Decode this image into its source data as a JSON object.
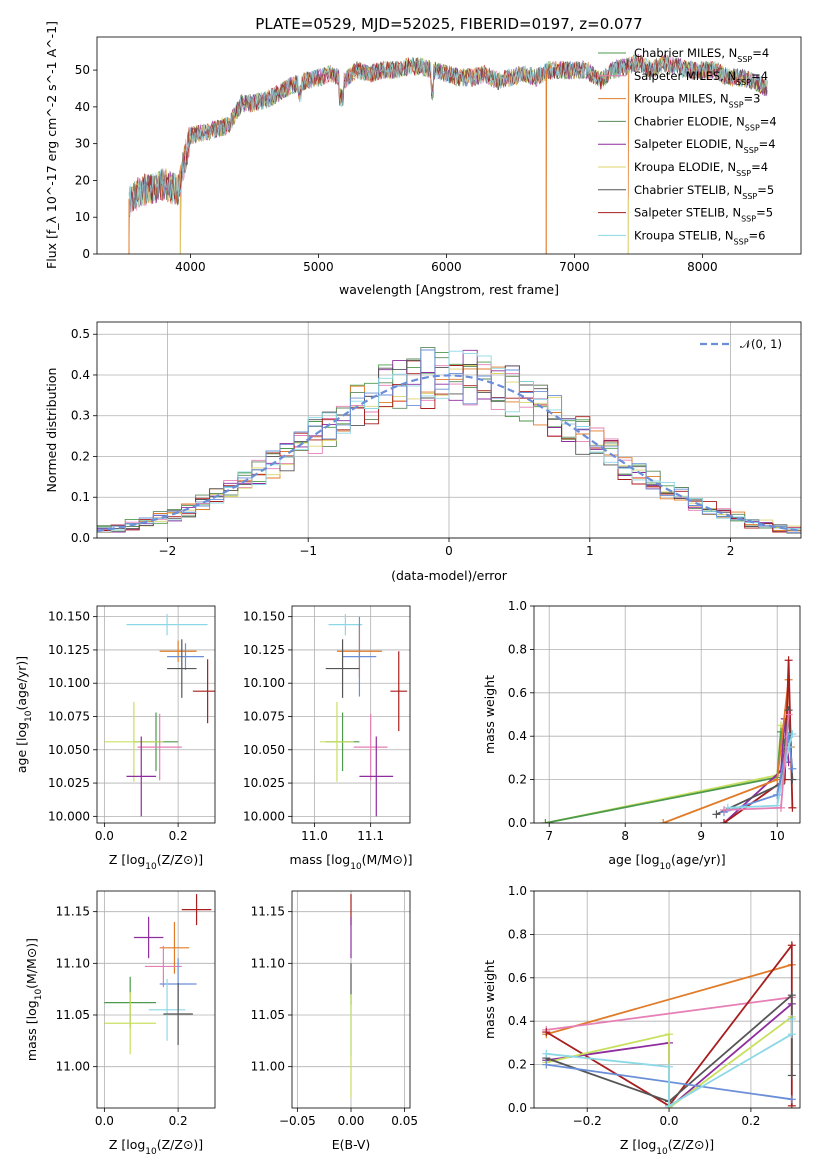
{
  "title": "PLATE=0529, MJD=52025, FIBERID=0197, z=0.077",
  "colors": [
    "#4d9a4d",
    "#e67fb5",
    "#e07b28",
    "#5d8a5d",
    "#8e2d9e",
    "#dcd36b",
    "#555555",
    "#a81e1e",
    "#8dd8e6"
  ],
  "extra_colors": {
    "blue": "#6a8fd8",
    "lime": "#c8e060"
  },
  "chart_data": [
    {
      "id": "spectrum",
      "type": "line",
      "title": "PLATE=0529, MJD=52025, FIBERID=0197, z=0.077",
      "xlabel": "wavelength [Angstrom, rest frame]",
      "ylabel": "Flux [f_λ 10^-17 erg cm^-2 s^-1 A^-1]",
      "xlim": [
        3270,
        8770
      ],
      "ylim": [
        0,
        59
      ],
      "xticks": [
        4000,
        5000,
        6000,
        7000,
        8000
      ],
      "yticks": [
        0,
        10,
        20,
        30,
        40,
        50
      ],
      "grid": false,
      "legend_position": "top-right",
      "series": [
        {
          "name": "Chabrier MILES, N_SSP=4",
          "label_main": "Chabrier MILES, N",
          "label_sub": "SSP",
          "label_tail": "=4"
        },
        {
          "name": "Salpeter MILES, N_SSP=4",
          "label_main": "Salpeter MILES, N",
          "label_sub": "SSP",
          "label_tail": "=4"
        },
        {
          "name": "Kroupa MILES, N_SSP=3",
          "label_main": "Kroupa MILES, N",
          "label_sub": "SSP",
          "label_tail": "=3"
        },
        {
          "name": "Chabrier ELODIE, N_SSP=4",
          "label_main": "Chabrier ELODIE, N",
          "label_sub": "SSP",
          "label_tail": "=4"
        },
        {
          "name": "Salpeter ELODIE, N_SSP=4",
          "label_main": "Salpeter ELODIE, N",
          "label_sub": "SSP",
          "label_tail": "=4"
        },
        {
          "name": "Kroupa ELODIE, N_SSP=4",
          "label_main": "Kroupa ELODIE, N",
          "label_sub": "SSP",
          "label_tail": "=4"
        },
        {
          "name": "Chabrier STELIB, N_SSP=5",
          "label_main": "Chabrier STELIB, N",
          "label_sub": "SSP",
          "label_tail": "=5"
        },
        {
          "name": "Salpeter STELIB, N_SSP=5",
          "label_main": "Salpeter STELIB, N",
          "label_sub": "SSP",
          "label_tail": "=5"
        },
        {
          "name": "Kroupa STELIB, N_SSP=6",
          "label_main": "Kroupa STELIB, N",
          "label_sub": "SSP",
          "label_tail": "=6"
        }
      ],
      "approx_continuum": [
        [
          3520,
          14
        ],
        [
          3600,
          17
        ],
        [
          3700,
          18
        ],
        [
          3800,
          19
        ],
        [
          3900,
          17
        ],
        [
          3950,
          25
        ],
        [
          4000,
          32
        ],
        [
          4100,
          33
        ],
        [
          4200,
          34
        ],
        [
          4300,
          35
        ],
        [
          4400,
          41
        ],
        [
          4500,
          41
        ],
        [
          4600,
          42
        ],
        [
          4700,
          44
        ],
        [
          4800,
          46
        ],
        [
          4900,
          47
        ],
        [
          5000,
          48
        ],
        [
          5100,
          49
        ],
        [
          5200,
          47
        ],
        [
          5300,
          50
        ],
        [
          5400,
          49
        ],
        [
          5500,
          50
        ],
        [
          5600,
          50
        ],
        [
          5700,
          51
        ],
        [
          5800,
          51
        ],
        [
          5900,
          50
        ],
        [
          6000,
          49
        ],
        [
          6100,
          48
        ],
        [
          6200,
          48
        ],
        [
          6300,
          49
        ],
        [
          6400,
          47
        ],
        [
          6500,
          48
        ],
        [
          6600,
          49
        ],
        [
          6700,
          48
        ],
        [
          6800,
          50
        ],
        [
          6900,
          50
        ],
        [
          7000,
          50
        ],
        [
          7100,
          50
        ],
        [
          7200,
          47
        ],
        [
          7300,
          50
        ],
        [
          7400,
          51
        ],
        [
          7500,
          52
        ],
        [
          7600,
          50
        ],
        [
          7700,
          52
        ],
        [
          7800,
          51
        ],
        [
          7900,
          50
        ],
        [
          8000,
          50
        ],
        [
          8100,
          50
        ],
        [
          8200,
          48
        ],
        [
          8300,
          48
        ],
        [
          8400,
          47
        ],
        [
          8510,
          45
        ]
      ],
      "dropouts": [
        [
          3520,
          0
        ],
        [
          3920,
          0
        ],
        [
          6780,
          0
        ],
        [
          7420,
          0
        ]
      ]
    },
    {
      "id": "residuals",
      "type": "line",
      "xlabel": "(data-model)/error",
      "ylabel": "Normed distribution",
      "xlim": [
        -2.5,
        2.5
      ],
      "ylim": [
        0,
        0.53
      ],
      "xticks": [
        -2,
        -1,
        0,
        1,
        2
      ],
      "yticks": [
        0.0,
        0.1,
        0.2,
        0.3,
        0.4,
        0.5
      ],
      "grid": true,
      "legend_position": "top-right",
      "reference_curve": {
        "name": "N(0,1)",
        "label_text": "𝒩(0, 1)",
        "mean": 0,
        "sigma": 1
      }
    },
    {
      "id": "age-vs-Z",
      "type": "scatter",
      "xlabel": "Z [log10(Z/Z⊙)]",
      "xlabel_main": "Z [log",
      "xlabel_sub": "10",
      "xlabel_tail": "(Z/Z⊙)]",
      "ylabel": "age [log10(age/yr)]",
      "ylabel_main": "age  [log",
      "ylabel_sub": "10",
      "ylabel_tail": "(age/yr)]",
      "xlim": [
        -0.02,
        0.3
      ],
      "ylim": [
        9.995,
        10.158
      ],
      "xticks": [
        0.0,
        0.2
      ],
      "yticks": [
        10.0,
        10.025,
        10.05,
        10.075,
        10.1,
        10.125,
        10.15
      ],
      "grid": true,
      "points": [
        {
          "c": "#8dd8e6",
          "x": 0.17,
          "y": 10.144,
          "xe": 0.11,
          "ye": 0.008
        },
        {
          "c": "#e07b28",
          "x": 0.2,
          "y": 10.124,
          "xe": 0.05,
          "ye": 0.008
        },
        {
          "c": "#6a8fd8",
          "x": 0.22,
          "y": 10.12,
          "xe": 0.05,
          "ye": 0.01
        },
        {
          "c": "#555555",
          "x": 0.21,
          "y": 10.111,
          "xe": 0.04,
          "ye": 0.022
        },
        {
          "c": "#a81e1e",
          "x": 0.28,
          "y": 10.094,
          "xe": 0.04,
          "ye": 0.024
        },
        {
          "c": "#4d9a4d",
          "x": 0.14,
          "y": 10.056,
          "xe": 0.06,
          "ye": 0.022
        },
        {
          "c": "#c8e060",
          "x": 0.08,
          "y": 10.056,
          "xe": 0.08,
          "ye": 0.03
        },
        {
          "c": "#e67fb5",
          "x": 0.15,
          "y": 10.052,
          "xe": 0.06,
          "ye": 0.025
        },
        {
          "c": "#8e2d9e",
          "x": 0.1,
          "y": 10.03,
          "xe": 0.04,
          "ye": 0.03
        }
      ]
    },
    {
      "id": "age-vs-mass",
      "type": "scatter",
      "xlabel": "mass [log10(M/M⊙)]",
      "xlabel_main": "mass [log",
      "xlabel_sub": "10",
      "xlabel_tail": "(M/M⊙)]",
      "xlim": [
        10.96,
        11.17
      ],
      "ylim": [
        9.995,
        10.158
      ],
      "xticks": [
        11.0,
        11.1
      ],
      "yticks": [
        10.0,
        10.025,
        10.05,
        10.075,
        10.1,
        10.125,
        10.15
      ],
      "grid": true,
      "points": [
        {
          "c": "#8dd8e6",
          "x": 11.055,
          "y": 10.144,
          "xe": 0.03,
          "ye": 0.008
        },
        {
          "c": "#e07b28",
          "x": 11.08,
          "y": 10.124,
          "xe": 0.04,
          "ye": 0.02
        },
        {
          "c": "#6a8fd8",
          "x": 11.08,
          "y": 10.12,
          "xe": 0.03,
          "ye": 0.03
        },
        {
          "c": "#555555",
          "x": 11.05,
          "y": 10.111,
          "xe": 0.03,
          "ye": 0.022
        },
        {
          "c": "#a81e1e",
          "x": 11.15,
          "y": 10.094,
          "xe": 0.015,
          "ye": 0.03
        },
        {
          "c": "#4d9a4d",
          "x": 11.05,
          "y": 10.056,
          "xe": 0.03,
          "ye": 0.022
        },
        {
          "c": "#c8e060",
          "x": 11.04,
          "y": 10.056,
          "xe": 0.03,
          "ye": 0.03
        },
        {
          "c": "#e67fb5",
          "x": 11.1,
          "y": 10.052,
          "xe": 0.03,
          "ye": 0.025
        },
        {
          "c": "#8e2d9e",
          "x": 11.11,
          "y": 10.03,
          "xe": 0.03,
          "ye": 0.03
        }
      ]
    },
    {
      "id": "mass-weight-vs-age",
      "type": "line",
      "xlabel": "age  [log10(age/yr)]",
      "xlabel_main": "age  [log",
      "xlabel_sub": "10",
      "xlabel_tail": "(age/yr)]",
      "ylabel": "mass weight",
      "xlim": [
        6.8,
        10.3
      ],
      "ylim": [
        0,
        1
      ],
      "xticks": [
        7,
        8,
        9,
        10
      ],
      "yticks": [
        0.0,
        0.2,
        0.4,
        0.6,
        0.8,
        1.0
      ],
      "grid": true,
      "series": [
        {
          "c": "#c8e060",
          "pts": [
            [
              6.95,
              0.0
            ],
            [
              10.0,
              0.22
            ],
            [
              10.05,
              0.45
            ],
            [
              10.1,
              0.33
            ]
          ]
        },
        {
          "c": "#4d9a4d",
          "pts": [
            [
              6.95,
              0.0
            ],
            [
              10.0,
              0.21
            ],
            [
              10.05,
              0.42
            ],
            [
              10.1,
              0.37
            ]
          ]
        },
        {
          "c": "#8e2d9e",
          "pts": [
            [
              9.3,
              0.0
            ],
            [
              10.05,
              0.24
            ],
            [
              10.1,
              0.48
            ],
            [
              10.15,
              0.28
            ]
          ]
        },
        {
          "c": "#e07b28",
          "pts": [
            [
              8.5,
              0.0
            ],
            [
              10.0,
              0.2
            ],
            [
              10.15,
              0.66
            ],
            [
              10.18,
              0.35
            ]
          ]
        },
        {
          "c": "#a81e1e",
          "pts": [
            [
              9.3,
              0.0
            ],
            [
              10.1,
              0.2
            ],
            [
              10.15,
              0.75
            ],
            [
              10.2,
              0.07
            ]
          ]
        },
        {
          "c": "#555555",
          "pts": [
            [
              9.2,
              0.04
            ],
            [
              10.05,
              0.18
            ],
            [
              10.15,
              0.52
            ],
            [
              10.2,
              0.2
            ]
          ]
        },
        {
          "c": "#6a8fd8",
          "pts": [
            [
              9.3,
              0.05
            ],
            [
              10.0,
              0.13
            ],
            [
              10.15,
              0.4
            ],
            [
              10.2,
              0.25
            ]
          ]
        },
        {
          "c": "#8dd8e6",
          "pts": [
            [
              9.35,
              0.07
            ],
            [
              10.0,
              0.08
            ],
            [
              10.15,
              0.35
            ],
            [
              10.2,
              0.41
            ]
          ]
        },
        {
          "c": "#e67fb5",
          "pts": [
            [
              9.3,
              0.06
            ],
            [
              10.05,
              0.07
            ],
            [
              10.15,
              0.5
            ]
          ]
        }
      ]
    },
    {
      "id": "mass-vs-Z",
      "type": "scatter",
      "xlabel": "Z [log10(Z/Z⊙)]",
      "xlabel_main": "Z [log",
      "xlabel_sub": "10",
      "xlabel_tail": "(Z/Z⊙)]",
      "ylabel": "mass [log10(M/M⊙)]",
      "ylabel_main": "mass [log",
      "ylabel_sub": "10",
      "ylabel_tail": "(M/M⊙)]",
      "xlim": [
        -0.02,
        0.3
      ],
      "ylim": [
        10.96,
        11.17
      ],
      "xticks": [
        0.0,
        0.2
      ],
      "yticks": [
        11.0,
        11.05,
        11.1,
        11.15
      ],
      "grid": true,
      "points": [
        {
          "c": "#a81e1e",
          "x": 0.25,
          "y": 11.152,
          "xe": 0.04,
          "ye": 0.015
        },
        {
          "c": "#8e2d9e",
          "x": 0.12,
          "y": 11.125,
          "xe": 0.04,
          "ye": 0.02
        },
        {
          "c": "#e07b28",
          "x": 0.19,
          "y": 11.115,
          "xe": 0.04,
          "ye": 0.025
        },
        {
          "c": "#e67fb5",
          "x": 0.16,
          "y": 11.097,
          "xe": 0.05,
          "ye": 0.02
        },
        {
          "c": "#6a8fd8",
          "x": 0.2,
          "y": 11.08,
          "xe": 0.05,
          "ye": 0.025
        },
        {
          "c": "#4d9a4d",
          "x": 0.07,
          "y": 11.062,
          "xe": 0.07,
          "ye": 0.025
        },
        {
          "c": "#8dd8e6",
          "x": 0.17,
          "y": 11.055,
          "xe": 0.05,
          "ye": 0.03
        },
        {
          "c": "#555555",
          "x": 0.2,
          "y": 11.051,
          "xe": 0.04,
          "ye": 0.03
        },
        {
          "c": "#c8e060",
          "x": 0.07,
          "y": 11.042,
          "xe": 0.07,
          "ye": 0.03
        }
      ]
    },
    {
      "id": "mass-vs-EBV",
      "type": "scatter",
      "xlabel": "E(B-V)",
      "xlim": [
        -0.055,
        0.055
      ],
      "ylim": [
        10.96,
        11.17
      ],
      "xticks": [
        -0.05,
        0.0,
        0.05
      ],
      "yticks": [
        11.0,
        11.05,
        11.1,
        11.15
      ],
      "grid": true,
      "points": [
        {
          "c": "#a81e1e",
          "x": 0.0,
          "y": 11.152,
          "xe": 0,
          "ye": 0.015
        },
        {
          "c": "#8e2d9e",
          "x": 0.0,
          "y": 11.125,
          "xe": 0,
          "ye": 0.02
        },
        {
          "c": "#555555",
          "x": 0.0,
          "y": 11.08,
          "xe": 0,
          "ye": 0.02
        },
        {
          "c": "#8dd8e6",
          "x": 0.0,
          "y": 11.04,
          "xe": 0,
          "ye": 0.03
        },
        {
          "c": "#c8e060",
          "x": 0.0,
          "y": 11.02,
          "xe": 0,
          "ye": 0.05
        }
      ]
    },
    {
      "id": "mass-weight-vs-Z",
      "type": "line",
      "xlabel": "Z [log10(Z/Z⊙)]",
      "xlabel_main": "Z [log",
      "xlabel_sub": "10",
      "xlabel_tail": "(Z/Z⊙)]",
      "ylabel": "mass weight",
      "xlim": [
        -0.33,
        0.32
      ],
      "ylim": [
        0,
        1
      ],
      "xticks": [
        -0.2,
        0.0,
        0.2
      ],
      "yticks": [
        0.0,
        0.2,
        0.4,
        0.6,
        0.8,
        1.0
      ],
      "grid": true,
      "series": [
        {
          "c": "#e07b28",
          "pts": [
            [
              -0.3,
              0.34
            ],
            [
              0.3,
              0.66
            ]
          ]
        },
        {
          "c": "#e67fb5",
          "pts": [
            [
              -0.3,
              0.36
            ],
            [
              0.3,
              0.51
            ]
          ]
        },
        {
          "c": "#a81e1e",
          "pts": [
            [
              -0.3,
              0.35
            ],
            [
              0.0,
              0.01
            ],
            [
              0.3,
              0.75
            ],
            [
              0.3,
              0.01
            ]
          ]
        },
        {
          "c": "#8e2d9e",
          "pts": [
            [
              -0.3,
              0.22
            ],
            [
              0.0,
              0.3
            ],
            [
              0.0,
              0.0
            ],
            [
              0.3,
              0.48
            ]
          ]
        },
        {
          "c": "#c8e060",
          "pts": [
            [
              -0.3,
              0.21
            ],
            [
              0.0,
              0.34
            ],
            [
              0.0,
              0.0
            ],
            [
              0.3,
              0.42
            ]
          ]
        },
        {
          "c": "#555555",
          "pts": [
            [
              -0.3,
              0.23
            ],
            [
              0.0,
              0.03
            ],
            [
              0.3,
              0.52
            ],
            [
              0.3,
              0.15
            ]
          ]
        },
        {
          "c": "#6a8fd8",
          "pts": [
            [
              -0.3,
              0.2
            ],
            [
              0.3,
              0.04
            ]
          ]
        },
        {
          "c": "#8dd8e6",
          "pts": [
            [
              -0.3,
              0.25
            ],
            [
              0.0,
              0.19
            ],
            [
              0.0,
              0.01
            ],
            [
              0.3,
              0.34
            ],
            [
              0.3,
              0.41
            ]
          ]
        }
      ]
    }
  ]
}
